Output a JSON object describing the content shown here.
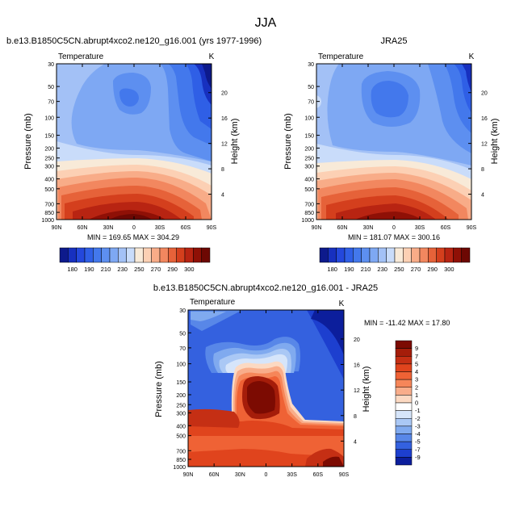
{
  "figure": {
    "title": "JJA"
  },
  "chart_data": [
    {
      "type": "heatmap",
      "title": "b.e13.B1850C5CN.abrupt4xco2.ne120_g16.001 (yrs 1977-1996)",
      "subtitle": "Temperature",
      "units": "K",
      "xlabel": "",
      "ylabel": "Pressure (mb)",
      "y2label": "Height (km)",
      "xticks": [
        "90N",
        "60N",
        "30N",
        "0",
        "30S",
        "60S",
        "90S"
      ],
      "yticks": [
        "30",
        "50",
        "70",
        "100",
        "150",
        "200",
        "250",
        "300",
        "400",
        "500",
        "700",
        "850",
        "1000"
      ],
      "y2ticks": [
        "4",
        "8",
        "12",
        "16",
        "20"
      ],
      "ylim": [
        1000,
        30
      ],
      "stats": "MIN = 169.65   MAX = 304.29",
      "colorbar_labels": [
        "180",
        "190",
        "210",
        "230",
        "250",
        "270",
        "290",
        "300"
      ],
      "min": 169.65,
      "max": 304.29
    },
    {
      "type": "heatmap",
      "title": "JRA25",
      "subtitle": "Temperature",
      "units": "K",
      "xlabel": "",
      "ylabel": "Pressure (mb)",
      "y2label": "Height (km)",
      "xticks": [
        "90N",
        "60N",
        "30N",
        "0",
        "30S",
        "60S",
        "90S"
      ],
      "yticks": [
        "30",
        "50",
        "70",
        "100",
        "150",
        "200",
        "250",
        "300",
        "400",
        "500",
        "700",
        "850",
        "1000"
      ],
      "y2ticks": [
        "4",
        "8",
        "12",
        "16",
        "20"
      ],
      "ylim": [
        1000,
        30
      ],
      "stats": "MIN = 181.07   MAX = 300.16",
      "colorbar_labels": [
        "180",
        "190",
        "210",
        "230",
        "250",
        "270",
        "290",
        "300"
      ],
      "min": 181.07,
      "max": 300.16
    },
    {
      "type": "heatmap",
      "title": "b.e13.B1850C5CN.abrupt4xco2.ne120_g16.001 - JRA25",
      "subtitle": "Temperature",
      "units": "K",
      "xlabel": "",
      "ylabel": "Pressure (mb)",
      "y2label": "Height (km)",
      "xticks": [
        "90N",
        "60N",
        "30N",
        "0",
        "30S",
        "60S",
        "90S"
      ],
      "yticks": [
        "30",
        "50",
        "70",
        "100",
        "150",
        "200",
        "250",
        "300",
        "400",
        "500",
        "700",
        "850",
        "1000"
      ],
      "y2ticks": [
        "4",
        "8",
        "12",
        "16",
        "20"
      ],
      "ylim": [
        1000,
        30
      ],
      "stats": "MIN = -11.42   MAX =  17.80",
      "colorbar_labels": [
        "9",
        "7",
        "5",
        "4",
        "3",
        "2",
        "1",
        "0",
        "-1",
        "-2",
        "-3",
        "-4",
        "-5",
        "-7",
        "-9"
      ],
      "min": -11.42,
      "max": 17.8
    }
  ],
  "colors": {
    "abs_scale": [
      "#0d1a8c",
      "#1730bf",
      "#2448dc",
      "#2f5fe6",
      "#4378ec",
      "#5d8ff0",
      "#7ea8f3",
      "#a3c1f6",
      "#c9dcfa",
      "#f8ead8",
      "#fcd0b4",
      "#f8ac88",
      "#f2875f",
      "#e66239",
      "#d43f1d",
      "#b82412",
      "#8f1006",
      "#6d0803"
    ],
    "diff_scale": [
      "#7c0b02",
      "#a51d0a",
      "#c52f14",
      "#e0441d",
      "#ef6235",
      "#f68659",
      "#f9ad8a",
      "#fcd9c2",
      "#ffffff",
      "#d6e5fa",
      "#aac8f5",
      "#80aaef",
      "#5887e8",
      "#3461df",
      "#1d3fcf",
      "#0c1e9c"
    ]
  }
}
